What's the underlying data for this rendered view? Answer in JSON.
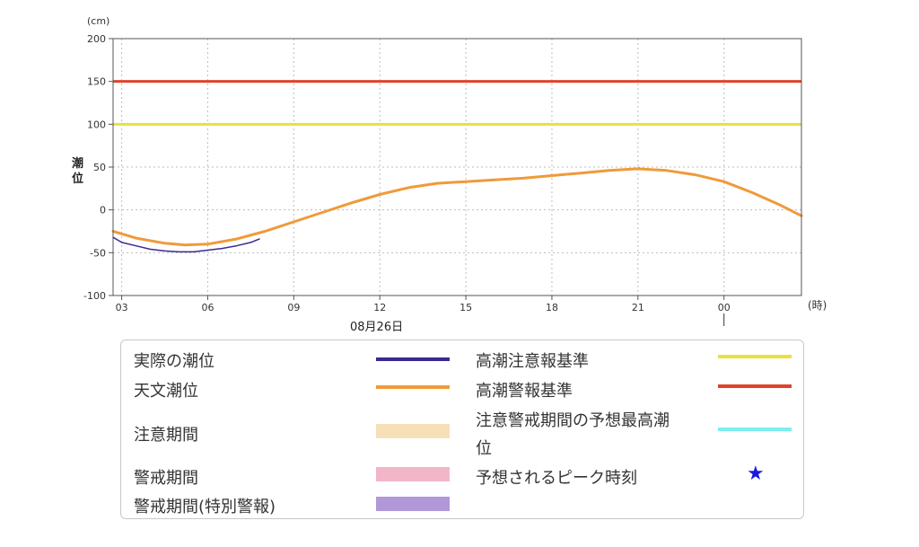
{
  "chart_data": {
    "type": "line",
    "y_unit_label": "(cm)",
    "x_unit_label": "(時)",
    "ylabel": "潮位",
    "date_label": "08月26日",
    "ylim": [
      -100,
      200
    ],
    "y_ticks": [
      200,
      150,
      100,
      50,
      0,
      -50,
      -100
    ],
    "x_range_hours": [
      2.7,
      26.7
    ],
    "x_ticks": [
      {
        "hour": 3,
        "label": "03"
      },
      {
        "hour": 6,
        "label": "06"
      },
      {
        "hour": 9,
        "label": "09"
      },
      {
        "hour": 12,
        "label": "12"
      },
      {
        "hour": 15,
        "label": "15"
      },
      {
        "hour": 18,
        "label": "18"
      },
      {
        "hour": 21,
        "label": "21"
      },
      {
        "hour": 24,
        "label": "00"
      }
    ],
    "grid": true,
    "reference_lines": [
      {
        "name": "高潮警報基準",
        "value": 150,
        "color": "#e0432a"
      },
      {
        "name": "高潮注意報基準",
        "value": 100,
        "color": "#ecdf3c"
      }
    ],
    "series": [
      {
        "name": "天文潮位",
        "color": "#f09a3a",
        "x": [
          2.7,
          3.5,
          4.5,
          5.2,
          6,
          7,
          8,
          9,
          10,
          11,
          12,
          13,
          14,
          15,
          16,
          17,
          18,
          19,
          20,
          21,
          21.5,
          22,
          23,
          24,
          25,
          26,
          26.7
        ],
        "y": [
          -25,
          -33,
          -39,
          -41,
          -40,
          -34,
          -25,
          -14,
          -3,
          8,
          18,
          26,
          31,
          33,
          35,
          37,
          40,
          43,
          46,
          48,
          47,
          46,
          41,
          33,
          20,
          5,
          -7
        ]
      },
      {
        "name": "実際の潮位",
        "color": "#3a2a8f",
        "x": [
          2.7,
          3,
          3.5,
          4,
          4.5,
          5,
          5.5,
          6,
          6.5,
          7,
          7.5,
          7.8
        ],
        "y": [
          -32,
          -38,
          -42,
          -46,
          -48,
          -49,
          -49,
          -47,
          -45,
          -42,
          -38,
          -34
        ]
      }
    ]
  },
  "legend": {
    "items": [
      {
        "label": "実際の潮位",
        "kind": "line",
        "color": "#3a2a8f"
      },
      {
        "label": "天文潮位",
        "kind": "line",
        "color": "#f09a3a"
      },
      {
        "label": "注意期間",
        "kind": "block",
        "color": "#f7dfb8"
      },
      {
        "label": "警戒期間",
        "kind": "block",
        "color": "#f3b6c9"
      },
      {
        "label": "警戒期間(特別警報)",
        "kind": "block",
        "color": "#b297d9"
      },
      {
        "label": "高潮注意報基準",
        "kind": "line",
        "color": "#ecdf3c"
      },
      {
        "label": "高潮警報基準",
        "kind": "line",
        "color": "#e0432a"
      },
      {
        "label_line1": "注意警戒期間の予想最高潮",
        "label_line2": "位",
        "kind": "line",
        "color": "#7eeef0"
      },
      {
        "label": "予想されるピーク時刻",
        "kind": "star",
        "color": "#1a1adf",
        "icon": "star-icon"
      }
    ]
  }
}
